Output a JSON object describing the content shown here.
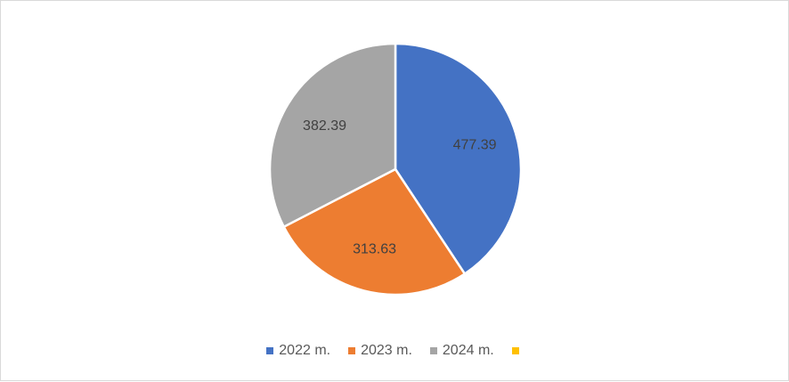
{
  "chart_data": {
    "type": "pie",
    "categories": [
      "2022 m.",
      "2023 m.",
      "2024 m.",
      ""
    ],
    "values": [
      477.39,
      313.63,
      382.39,
      0
    ],
    "data_labels": [
      "477.39",
      "313.63",
      "382.39",
      ""
    ],
    "colors": [
      "#4472C4",
      "#ED7D31",
      "#A5A5A5",
      "#FFC000"
    ],
    "legend_position": "bottom"
  }
}
